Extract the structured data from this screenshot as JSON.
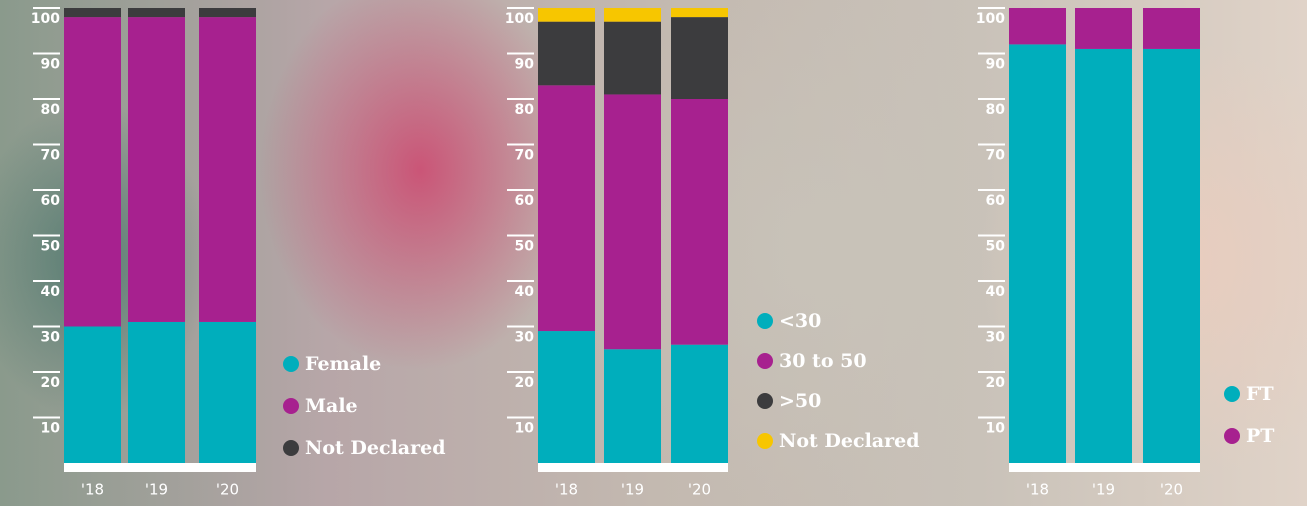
{
  "chart_data": [
    {
      "type": "stacked-bar",
      "categories": [
        "'18",
        "'19",
        "'20"
      ],
      "series": [
        {
          "name": "Female",
          "color": "#00aebc",
          "values": [
            30,
            31,
            31
          ]
        },
        {
          "name": "Male",
          "color": "#a7218f",
          "values": [
            68,
            67,
            67
          ]
        },
        {
          "name": "Not Declared",
          "color": "#3c3c3e",
          "values": [
            2,
            2,
            2
          ]
        }
      ],
      "ylim": [
        0,
        100
      ],
      "yticks": [
        10,
        20,
        30,
        40,
        50,
        60,
        70,
        80,
        90,
        100
      ]
    },
    {
      "type": "stacked-bar",
      "categories": [
        "'18",
        "'19",
        "'20"
      ],
      "series": [
        {
          "name": "<30",
          "color": "#00aebc",
          "values": [
            29,
            25,
            26
          ]
        },
        {
          "name": "30 to 50",
          "color": "#a7218f",
          "values": [
            54,
            56,
            54
          ]
        },
        {
          "name": ">50",
          "color": "#3c3c3e",
          "values": [
            14,
            16,
            18
          ]
        },
        {
          "name": "Not Declared",
          "color": "#f7c600",
          "values": [
            3,
            3,
            2
          ]
        }
      ],
      "ylim": [
        0,
        100
      ],
      "yticks": [
        10,
        20,
        30,
        40,
        50,
        60,
        70,
        80,
        90,
        100
      ]
    },
    {
      "type": "stacked-bar",
      "categories": [
        "'18",
        "'19",
        "'20"
      ],
      "series": [
        {
          "name": "FT",
          "color": "#00aebc",
          "values": [
            92,
            91,
            91
          ]
        },
        {
          "name": "PT",
          "color": "#a7218f",
          "values": [
            8,
            9,
            9
          ]
        }
      ],
      "ylim": [
        0,
        100
      ],
      "yticks": [
        10,
        20,
        30,
        40,
        50,
        60,
        70,
        80,
        90,
        100
      ]
    }
  ]
}
